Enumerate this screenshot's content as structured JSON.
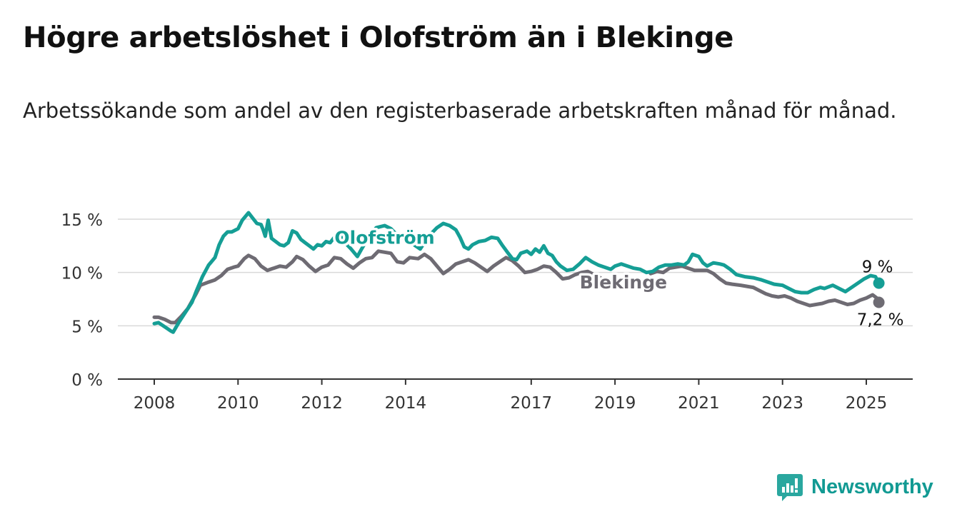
{
  "title": "Högre arbetslöshet i Olofström än i Blekinge",
  "subtitle": "Arbetssökande som andel av den registerbaserade arbetskraften månad för månad.",
  "brand": {
    "name": "Newsworthy",
    "color": "#129a93"
  },
  "chart_data": {
    "type": "line",
    "title": "Högre arbetslöshet i Olofström än i Blekinge",
    "subtitle": "Arbetssökande som andel av den registerbaserade arbetskraften månad för månad.",
    "x_unit": "år",
    "xlim": [
      2007.9,
      2026.1
    ],
    "ylim": [
      0,
      15
    ],
    "y_ticks": [
      {
        "value": 0,
        "label": "0 %"
      },
      {
        "value": 5,
        "label": "5 %"
      },
      {
        "value": 10,
        "label": "10 %"
      },
      {
        "value": 15,
        "label": "15 %"
      }
    ],
    "x_ticks": [
      {
        "value": 2008,
        "label": "2008"
      },
      {
        "value": 2010,
        "label": "2010"
      },
      {
        "value": 2012,
        "label": "2012"
      },
      {
        "value": 2014,
        "label": "2014"
      },
      {
        "value": 2017,
        "label": "2017"
      },
      {
        "value": 2019,
        "label": "2019"
      },
      {
        "value": 2021,
        "label": "2021"
      },
      {
        "value": 2023,
        "label": "2023"
      },
      {
        "value": 2025,
        "label": "2025"
      }
    ],
    "grid": true,
    "series": [
      {
        "name": "Olofström",
        "color": "#159e95",
        "end_label": "9 %",
        "points": [
          [
            2008.0,
            5.2
          ],
          [
            2008.1,
            5.3
          ],
          [
            2008.25,
            4.9
          ],
          [
            2008.4,
            4.5
          ],
          [
            2008.45,
            4.4
          ],
          [
            2008.6,
            5.4
          ],
          [
            2008.75,
            6.3
          ],
          [
            2008.9,
            7.2
          ],
          [
            2009.0,
            8.2
          ],
          [
            2009.15,
            9.6
          ],
          [
            2009.3,
            10.7
          ],
          [
            2009.45,
            11.4
          ],
          [
            2009.55,
            12.6
          ],
          [
            2009.65,
            13.4
          ],
          [
            2009.75,
            13.8
          ],
          [
            2009.85,
            13.8
          ],
          [
            2010.0,
            14.1
          ],
          [
            2010.1,
            14.9
          ],
          [
            2010.25,
            15.6
          ],
          [
            2010.35,
            15.1
          ],
          [
            2010.45,
            14.6
          ],
          [
            2010.55,
            14.5
          ],
          [
            2010.6,
            14.0
          ],
          [
            2010.65,
            13.4
          ],
          [
            2010.72,
            14.9
          ],
          [
            2010.8,
            13.2
          ],
          [
            2010.9,
            12.9
          ],
          [
            2011.0,
            12.6
          ],
          [
            2011.1,
            12.5
          ],
          [
            2011.2,
            12.8
          ],
          [
            2011.3,
            13.9
          ],
          [
            2011.4,
            13.7
          ],
          [
            2011.5,
            13.1
          ],
          [
            2011.6,
            12.8
          ],
          [
            2011.7,
            12.5
          ],
          [
            2011.8,
            12.2
          ],
          [
            2011.9,
            12.6
          ],
          [
            2012.0,
            12.5
          ],
          [
            2012.1,
            12.9
          ],
          [
            2012.2,
            12.8
          ],
          [
            2012.3,
            13.3
          ],
          [
            2012.4,
            12.9
          ],
          [
            2012.5,
            13.3
          ],
          [
            2012.6,
            12.6
          ],
          [
            2012.7,
            12.2
          ],
          [
            2012.85,
            11.5
          ],
          [
            2012.95,
            12.2
          ],
          [
            2013.1,
            13.2
          ],
          [
            2013.3,
            14.2
          ],
          [
            2013.5,
            14.4
          ],
          [
            2013.65,
            14.1
          ],
          [
            2013.8,
            13.5
          ],
          [
            2014.0,
            13.1
          ],
          [
            2014.2,
            12.6
          ],
          [
            2014.35,
            12.2
          ],
          [
            2014.45,
            12.8
          ],
          [
            2014.6,
            13.6
          ],
          [
            2014.75,
            14.2
          ],
          [
            2014.9,
            14.6
          ],
          [
            2015.05,
            14.4
          ],
          [
            2015.2,
            14.0
          ],
          [
            2015.3,
            13.3
          ],
          [
            2015.4,
            12.4
          ],
          [
            2015.5,
            12.2
          ],
          [
            2015.6,
            12.6
          ],
          [
            2015.75,
            12.9
          ],
          [
            2015.9,
            13.0
          ],
          [
            2016.05,
            13.3
          ],
          [
            2016.2,
            13.2
          ],
          [
            2016.3,
            12.6
          ],
          [
            2016.45,
            11.8
          ],
          [
            2016.55,
            11.3
          ],
          [
            2016.65,
            11.2
          ],
          [
            2016.75,
            11.8
          ],
          [
            2016.9,
            12.0
          ],
          [
            2017.0,
            11.7
          ],
          [
            2017.1,
            12.2
          ],
          [
            2017.2,
            11.9
          ],
          [
            2017.3,
            12.5
          ],
          [
            2017.4,
            11.8
          ],
          [
            2017.5,
            11.6
          ],
          [
            2017.6,
            11.0
          ],
          [
            2017.7,
            10.6
          ],
          [
            2017.85,
            10.2
          ],
          [
            2018.0,
            10.3
          ],
          [
            2018.15,
            10.8
          ],
          [
            2018.3,
            11.4
          ],
          [
            2018.45,
            11.0
          ],
          [
            2018.6,
            10.7
          ],
          [
            2018.75,
            10.5
          ],
          [
            2018.9,
            10.3
          ],
          [
            2019.0,
            10.6
          ],
          [
            2019.15,
            10.8
          ],
          [
            2019.3,
            10.6
          ],
          [
            2019.45,
            10.4
          ],
          [
            2019.6,
            10.3
          ],
          [
            2019.75,
            10.0
          ],
          [
            2019.9,
            10.1
          ],
          [
            2020.05,
            10.5
          ],
          [
            2020.2,
            10.7
          ],
          [
            2020.35,
            10.7
          ],
          [
            2020.5,
            10.8
          ],
          [
            2020.65,
            10.7
          ],
          [
            2020.75,
            11.0
          ],
          [
            2020.85,
            11.7
          ],
          [
            2021.0,
            11.5
          ],
          [
            2021.1,
            10.9
          ],
          [
            2021.2,
            10.6
          ],
          [
            2021.35,
            10.9
          ],
          [
            2021.5,
            10.8
          ],
          [
            2021.6,
            10.7
          ],
          [
            2021.75,
            10.3
          ],
          [
            2021.9,
            9.8
          ],
          [
            2022.1,
            9.6
          ],
          [
            2022.3,
            9.5
          ],
          [
            2022.5,
            9.3
          ],
          [
            2022.65,
            9.1
          ],
          [
            2022.8,
            8.9
          ],
          [
            2023.0,
            8.8
          ],
          [
            2023.15,
            8.5
          ],
          [
            2023.3,
            8.2
          ],
          [
            2023.45,
            8.1
          ],
          [
            2023.6,
            8.1
          ],
          [
            2023.75,
            8.4
          ],
          [
            2023.9,
            8.6
          ],
          [
            2024.0,
            8.5
          ],
          [
            2024.2,
            8.8
          ],
          [
            2024.35,
            8.5
          ],
          [
            2024.5,
            8.2
          ],
          [
            2024.65,
            8.6
          ],
          [
            2024.8,
            9.0
          ],
          [
            2024.95,
            9.4
          ],
          [
            2025.1,
            9.7
          ],
          [
            2025.22,
            9.6
          ],
          [
            2025.3,
            9.0
          ]
        ]
      },
      {
        "name": "Blekinge",
        "color": "#6e6b73",
        "end_label": "7,2 %",
        "points": [
          [
            2008.0,
            5.8
          ],
          [
            2008.1,
            5.8
          ],
          [
            2008.25,
            5.6
          ],
          [
            2008.4,
            5.3
          ],
          [
            2008.5,
            5.3
          ],
          [
            2008.65,
            5.9
          ],
          [
            2008.8,
            6.6
          ],
          [
            2009.0,
            8.0
          ],
          [
            2009.1,
            8.8
          ],
          [
            2009.3,
            9.1
          ],
          [
            2009.45,
            9.3
          ],
          [
            2009.6,
            9.7
          ],
          [
            2009.75,
            10.3
          ],
          [
            2009.9,
            10.5
          ],
          [
            2010.0,
            10.6
          ],
          [
            2010.15,
            11.3
          ],
          [
            2010.25,
            11.6
          ],
          [
            2010.4,
            11.3
          ],
          [
            2010.55,
            10.6
          ],
          [
            2010.7,
            10.2
          ],
          [
            2010.85,
            10.4
          ],
          [
            2011.0,
            10.6
          ],
          [
            2011.15,
            10.5
          ],
          [
            2011.3,
            11.0
          ],
          [
            2011.4,
            11.5
          ],
          [
            2011.55,
            11.2
          ],
          [
            2011.7,
            10.6
          ],
          [
            2011.85,
            10.1
          ],
          [
            2012.0,
            10.5
          ],
          [
            2012.15,
            10.7
          ],
          [
            2012.3,
            11.4
          ],
          [
            2012.45,
            11.3
          ],
          [
            2012.6,
            10.8
          ],
          [
            2012.75,
            10.4
          ],
          [
            2012.9,
            10.9
          ],
          [
            2013.05,
            11.3
          ],
          [
            2013.2,
            11.4
          ],
          [
            2013.35,
            12.0
          ],
          [
            2013.5,
            11.9
          ],
          [
            2013.65,
            11.8
          ],
          [
            2013.8,
            11.0
          ],
          [
            2013.95,
            10.9
          ],
          [
            2014.1,
            11.4
          ],
          [
            2014.3,
            11.3
          ],
          [
            2014.45,
            11.7
          ],
          [
            2014.6,
            11.3
          ],
          [
            2014.75,
            10.6
          ],
          [
            2014.9,
            9.9
          ],
          [
            2015.05,
            10.3
          ],
          [
            2015.2,
            10.8
          ],
          [
            2015.35,
            11.0
          ],
          [
            2015.5,
            11.2
          ],
          [
            2015.65,
            10.9
          ],
          [
            2015.8,
            10.5
          ],
          [
            2015.95,
            10.1
          ],
          [
            2016.1,
            10.6
          ],
          [
            2016.25,
            11.0
          ],
          [
            2016.4,
            11.4
          ],
          [
            2016.55,
            11.1
          ],
          [
            2016.7,
            10.6
          ],
          [
            2016.85,
            10.0
          ],
          [
            2017.0,
            10.1
          ],
          [
            2017.15,
            10.3
          ],
          [
            2017.3,
            10.6
          ],
          [
            2017.45,
            10.5
          ],
          [
            2017.6,
            10.0
          ],
          [
            2017.75,
            9.4
          ],
          [
            2017.9,
            9.5
          ],
          [
            2018.05,
            9.8
          ],
          [
            2018.2,
            10.0
          ],
          [
            2018.35,
            10.1
          ],
          [
            2018.5,
            9.8
          ],
          [
            2018.65,
            9.5
          ]
        ],
        "points_b": [
          [
            2019.85,
            9.9
          ],
          [
            2020.0,
            10.1
          ],
          [
            2020.15,
            10.0
          ],
          [
            2020.3,
            10.4
          ],
          [
            2020.45,
            10.5
          ],
          [
            2020.6,
            10.6
          ],
          [
            2020.75,
            10.4
          ],
          [
            2020.9,
            10.2
          ],
          [
            2021.05,
            10.2
          ],
          [
            2021.2,
            10.2
          ],
          [
            2021.35,
            9.9
          ],
          [
            2021.5,
            9.4
          ],
          [
            2021.65,
            9.0
          ],
          [
            2021.8,
            8.9
          ],
          [
            2022.0,
            8.8
          ],
          [
            2022.15,
            8.7
          ],
          [
            2022.3,
            8.6
          ],
          [
            2022.45,
            8.3
          ],
          [
            2022.6,
            8.0
          ],
          [
            2022.75,
            7.8
          ],
          [
            2022.9,
            7.7
          ],
          [
            2023.05,
            7.8
          ],
          [
            2023.2,
            7.6
          ],
          [
            2023.35,
            7.3
          ],
          [
            2023.5,
            7.1
          ],
          [
            2023.65,
            6.9
          ],
          [
            2023.8,
            7.0
          ],
          [
            2023.95,
            7.1
          ],
          [
            2024.1,
            7.3
          ],
          [
            2024.25,
            7.4
          ],
          [
            2024.4,
            7.2
          ],
          [
            2024.55,
            7.0
          ],
          [
            2024.7,
            7.1
          ],
          [
            2024.85,
            7.4
          ],
          [
            2025.0,
            7.6
          ],
          [
            2025.15,
            7.9
          ],
          [
            2025.25,
            7.6
          ],
          [
            2025.3,
            7.2
          ]
        ]
      }
    ],
    "series_labels": [
      {
        "series": "Olofström",
        "text": "Olofström",
        "x": 2013.5,
        "y": 12.7
      },
      {
        "series": "Blekinge",
        "text": "Blekinge",
        "x": 2019.2,
        "y": 8.5
      }
    ]
  }
}
